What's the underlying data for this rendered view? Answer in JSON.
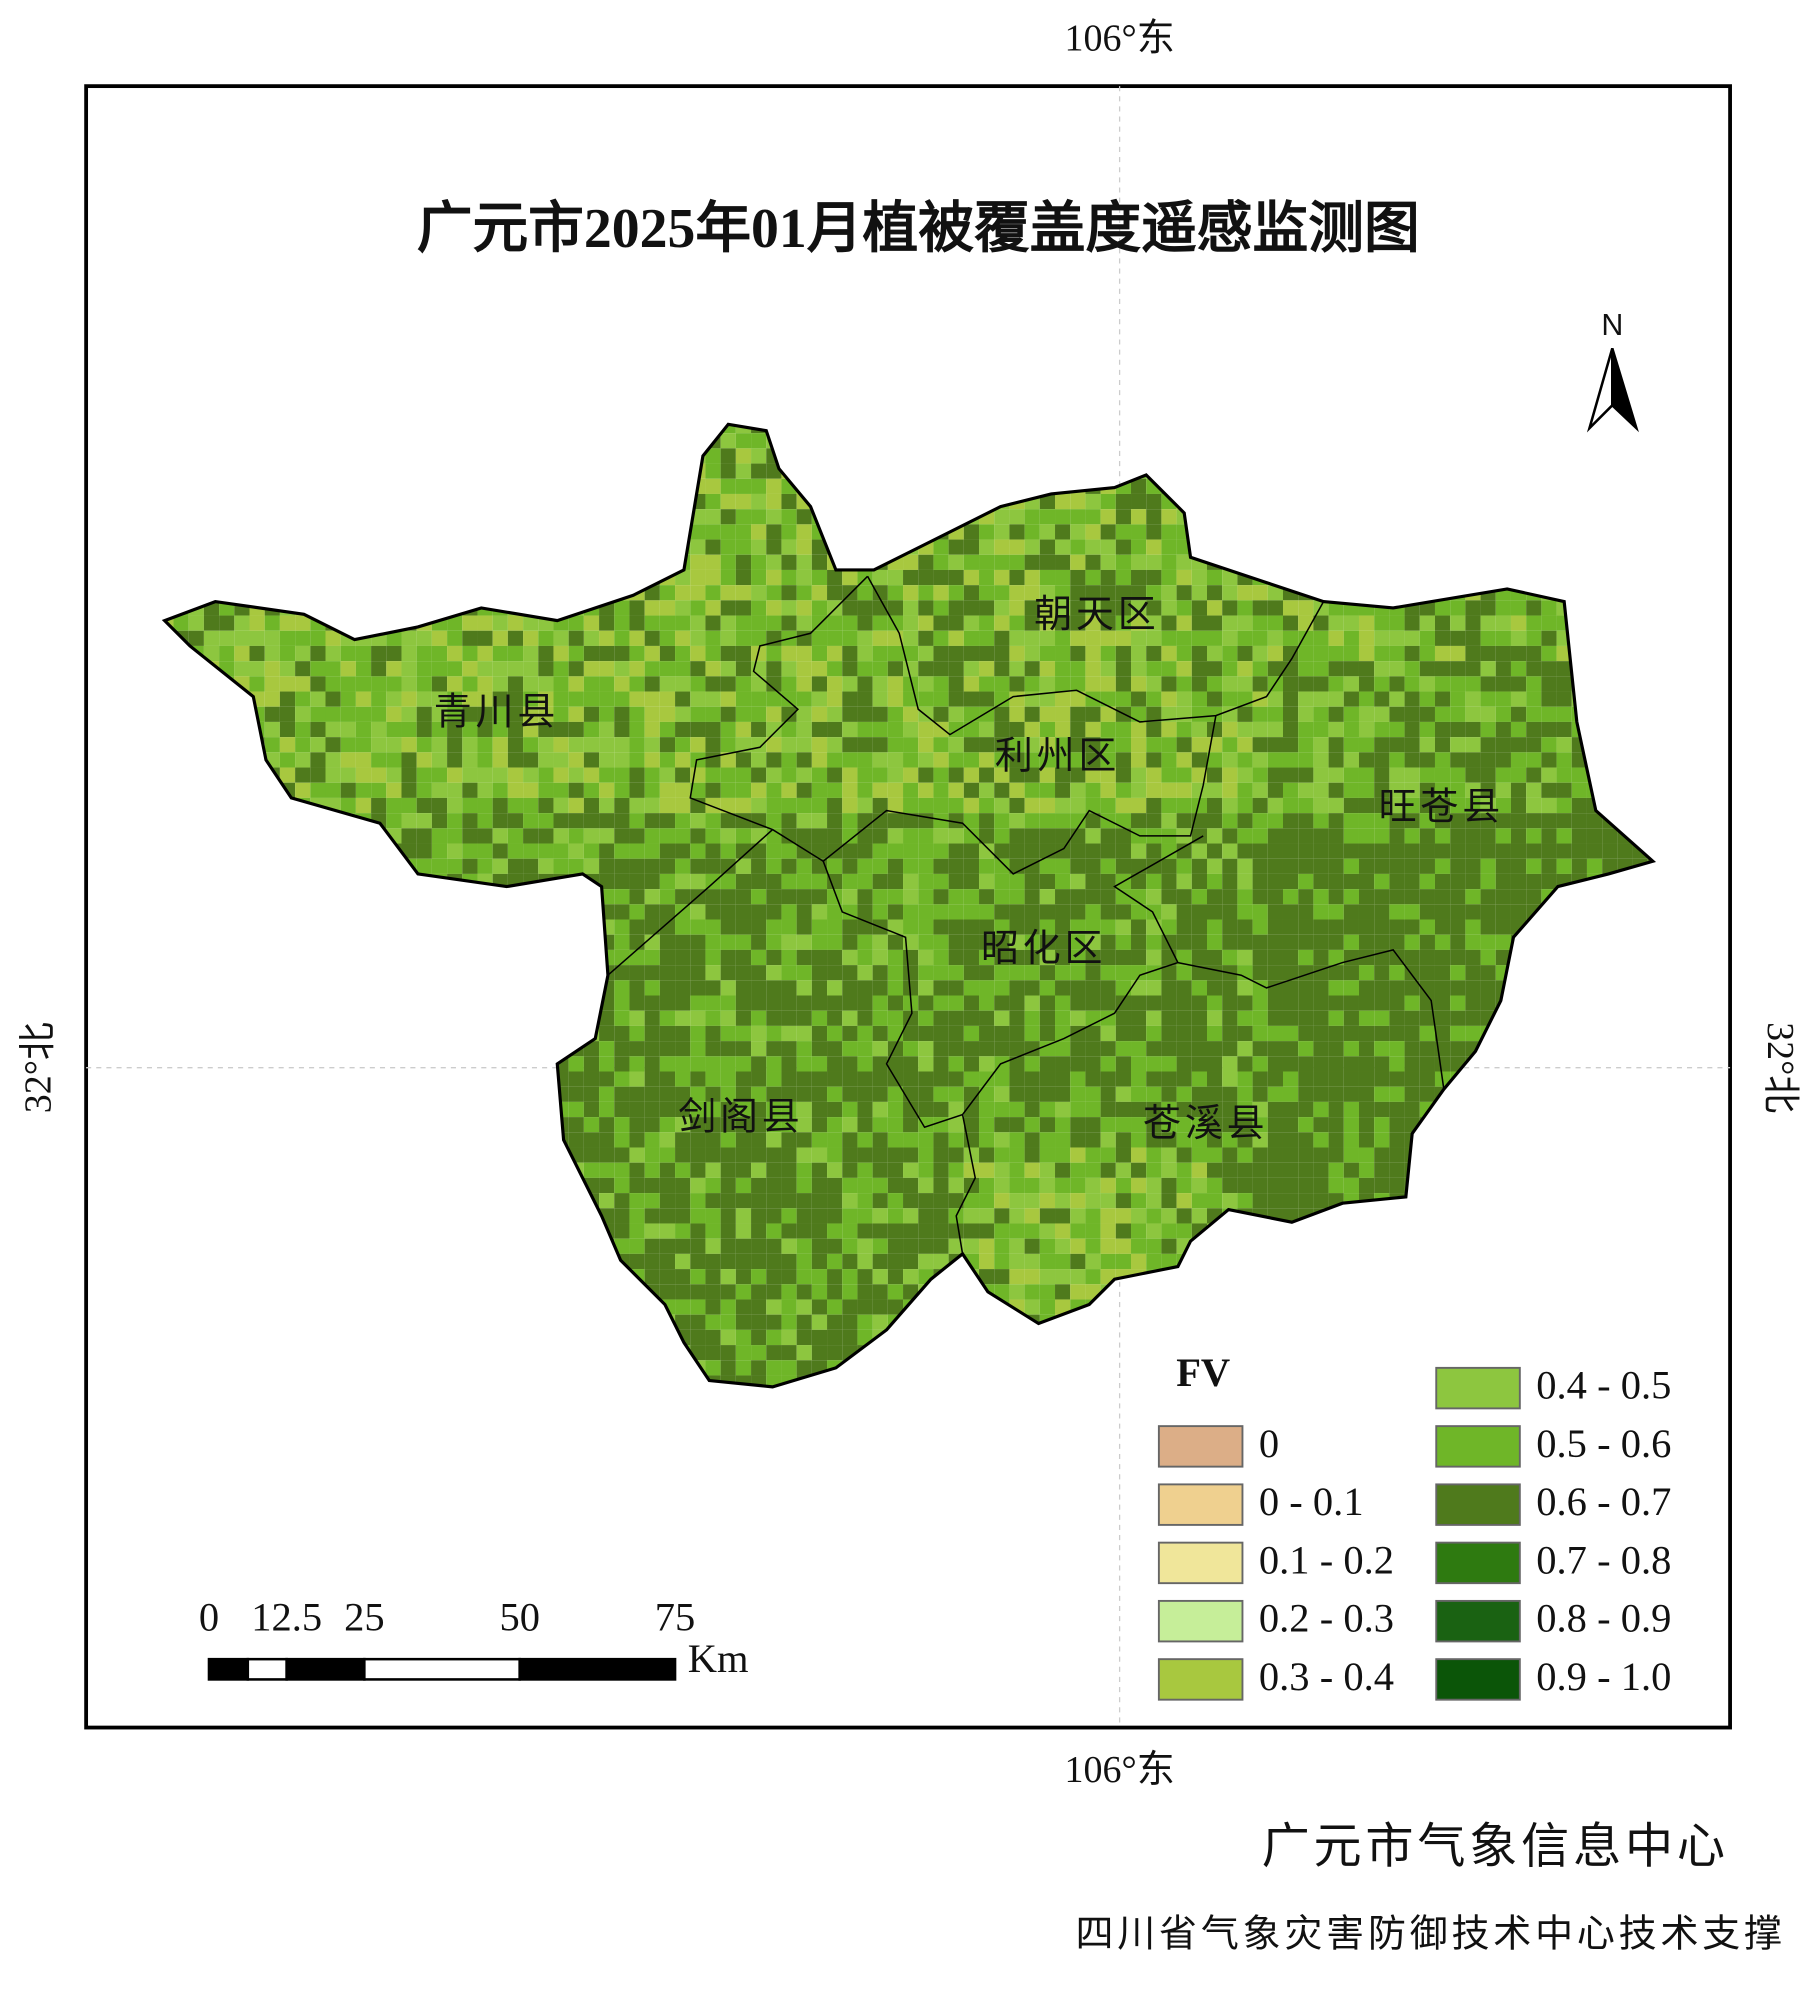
{
  "header": {
    "title": "广元市2025年01月植被覆盖度遥感监测图"
  },
  "graticule": {
    "top": "106°东",
    "bottom": "106°东",
    "left": "32°北",
    "right": "32°北"
  },
  "north_arrow": "N",
  "districts": [
    "青川县",
    "朝天区",
    "利州区",
    "旺苍县",
    "昭化区",
    "剑阁县",
    "苍溪县"
  ],
  "legend": {
    "title": "FV",
    "items": [
      {
        "label": "0",
        "color": "#dcae87"
      },
      {
        "label": "0 - 0.1",
        "color": "#efd08f"
      },
      {
        "label": "0.1 - 0.2",
        "color": "#f0e69a"
      },
      {
        "label": "0.2 - 0.3",
        "color": "#c6ee99"
      },
      {
        "label": "0.3 - 0.4",
        "color": "#a8c83f"
      },
      {
        "label": "0.4 - 0.5",
        "color": "#8dc63f"
      },
      {
        "label": "0.5 - 0.6",
        "color": "#6fb628"
      },
      {
        "label": "0.6 - 0.7",
        "color": "#4f7a1c"
      },
      {
        "label": "0.7 - 0.8",
        "color": "#2e7a10"
      },
      {
        "label": "0.8 - 0.9",
        "color": "#1a6212"
      },
      {
        "label": "0.9 - 1.0",
        "color": "#0b5508"
      }
    ]
  },
  "scale_bar": {
    "ticks": [
      0,
      12.5,
      25,
      50,
      75
    ],
    "unit": "Km"
  },
  "footer": {
    "producer": "广元市气象信息中心",
    "support": "四川省气象灾害防御技术中心技术支撑"
  }
}
